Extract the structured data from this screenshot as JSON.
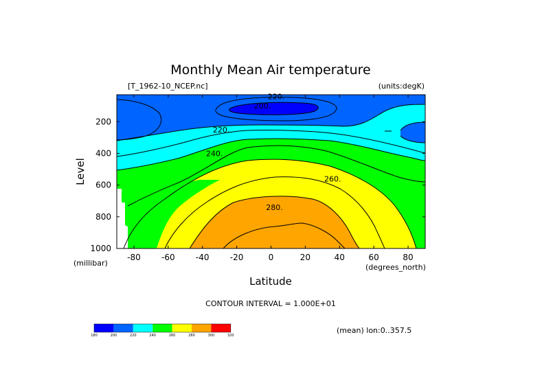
{
  "chart_data": {
    "type": "contour",
    "title": "Monthly Mean Air temperature",
    "source_label": "[T_1962-10_NCEP.nc]",
    "units_label": "(units:degK)",
    "xlabel": "Latitude",
    "xunits": "(degrees_north)",
    "ylabel": "Level",
    "yunits": "(millibar)",
    "xlim": [
      -90,
      90
    ],
    "ylim": [
      1000,
      30
    ],
    "x_ticks": [
      -80,
      -60,
      -40,
      -20,
      0,
      20,
      40,
      60,
      80
    ],
    "y_ticks": [
      200,
      400,
      600,
      800,
      1000
    ],
    "contour_interval_text": "CONTOUR INTERVAL = 1.000E+01",
    "mean_text": "(mean) lon:0..357.5",
    "contour_labels": [
      {
        "text": "220.",
        "lat": 3,
        "level": 40
      },
      {
        "text": "200.",
        "lat": -5,
        "level": 100
      },
      {
        "text": "220.",
        "lat": -29,
        "level": 250
      },
      {
        "text": "240.",
        "lat": -33,
        "level": 400
      },
      {
        "text": "260.",
        "lat": 36,
        "level": 560
      },
      {
        "text": "280.",
        "lat": 2,
        "level": 740
      }
    ],
    "colorbar": {
      "levels": [
        180,
        200,
        220,
        240,
        260,
        280,
        300,
        320
      ],
      "colors": [
        "#0000ff",
        "#0064ff",
        "#00ffff",
        "#00ff00",
        "#ffff00",
        "#ffa500",
        "#ff0000"
      ]
    },
    "bands": [
      {
        "from": 180,
        "to": 200,
        "color": "#0000ff"
      },
      {
        "from": 200,
        "to": 220,
        "color": "#0064ff"
      },
      {
        "from": 220,
        "to": 240,
        "color": "#00ffff"
      },
      {
        "from": 240,
        "to": 260,
        "color": "#00ff00"
      },
      {
        "from": 260,
        "to": 280,
        "color": "#ffff00"
      },
      {
        "from": 280,
        "to": 300,
        "color": "#ffa500"
      }
    ]
  }
}
